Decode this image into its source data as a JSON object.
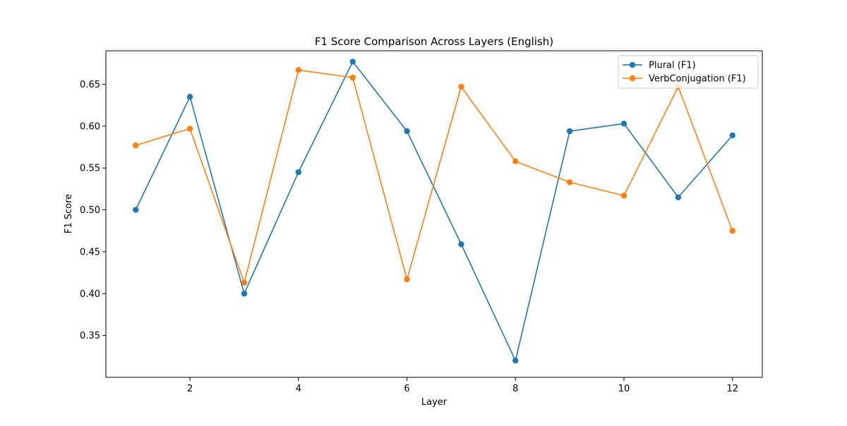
{
  "chart_data": {
    "type": "line",
    "title": "F1 Score Comparison Across Layers (English)",
    "xlabel": "Layer",
    "ylabel": "F1 Score",
    "xlim": [
      0.45,
      12.55
    ],
    "ylim": [
      0.3,
      0.69
    ],
    "xticks": [
      2,
      4,
      6,
      8,
      10,
      12
    ],
    "xtick_labels": [
      "2",
      "4",
      "6",
      "8",
      "10",
      "12"
    ],
    "yticks": [
      0.35,
      0.4,
      0.45,
      0.5,
      0.55,
      0.6,
      0.65
    ],
    "ytick_labels": [
      "0.35",
      "0.40",
      "0.45",
      "0.50",
      "0.55",
      "0.60",
      "0.65"
    ],
    "grid": false,
    "legend_position": "top-right",
    "x": [
      1,
      2,
      3,
      4,
      5,
      6,
      7,
      8,
      9,
      10,
      11,
      12
    ],
    "series": [
      {
        "name": "Plural (F1)",
        "color": "#1f77b4",
        "marker": "circle",
        "values": [
          0.5,
          0.635,
          0.4,
          0.545,
          0.677,
          0.594,
          0.459,
          0.32,
          0.594,
          0.603,
          0.515,
          0.589
        ]
      },
      {
        "name": "VerbConjugation (F1)",
        "color": "#ff7f0e",
        "marker": "circle",
        "values": [
          0.577,
          0.597,
          0.413,
          0.667,
          0.658,
          0.417,
          0.647,
          0.558,
          0.533,
          0.517,
          0.647,
          0.475
        ]
      }
    ]
  }
}
